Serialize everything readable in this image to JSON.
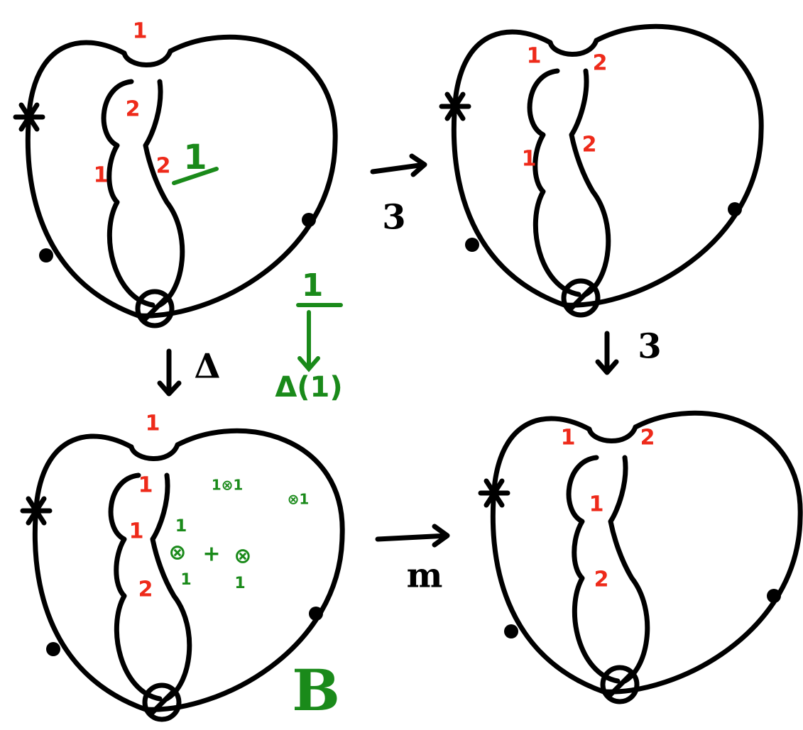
{
  "panels": [
    {
      "red_labels": [
        "1",
        "2",
        "2",
        "1"
      ],
      "green_label": "1"
    },
    {
      "red_labels": [
        "1",
        "2",
        "2",
        "1"
      ]
    },
    {
      "red_labels": [
        "1",
        "1",
        "1",
        "2"
      ],
      "green_notes": [
        "1⊗1",
        "⊗1",
        "1",
        "⊗",
        "+",
        "⊗",
        "1",
        "1"
      ]
    },
    {
      "red_labels": [
        "1",
        "2",
        "1",
        "2"
      ]
    }
  ],
  "arrows": [
    {
      "label": "3"
    },
    {
      "label": "Δ"
    },
    {
      "label": "m"
    },
    {
      "label": "3"
    }
  ],
  "map": {
    "top": "1",
    "bottom": "Δ(1)"
  },
  "corner_label": "B"
}
